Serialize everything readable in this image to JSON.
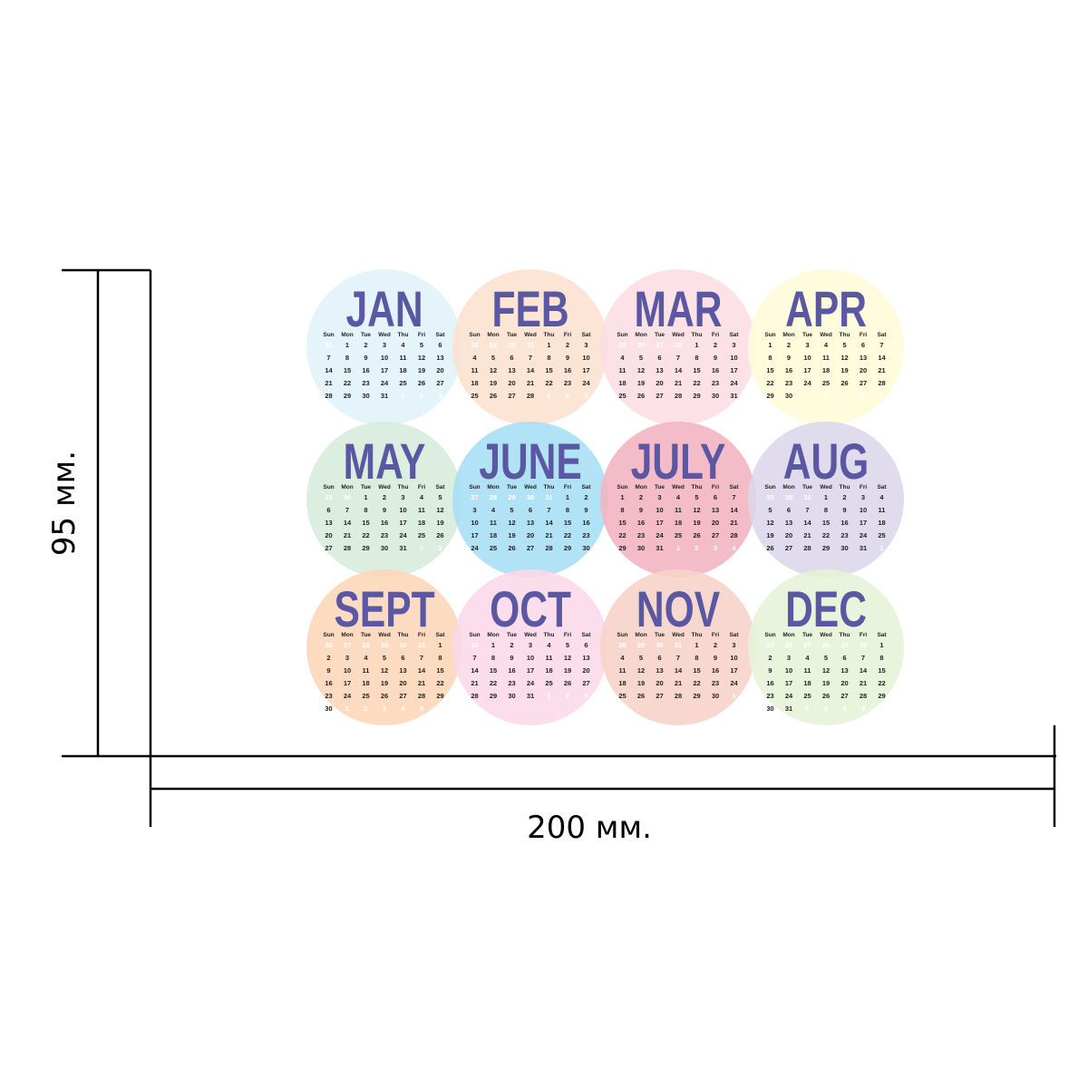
{
  "dimensions": {
    "height_label": "95 мм.",
    "width_label": "200 мм."
  },
  "weekdays": [
    "Sun",
    "Mon",
    "Tue",
    "Wed",
    "Thu",
    "Fri",
    "Sat"
  ],
  "months": [
    {
      "name": "JAN",
      "color": "#e1f2f9",
      "weeks": [
        [
          31,
          1,
          2,
          3,
          4,
          5,
          6
        ],
        [
          7,
          8,
          9,
          10,
          11,
          12,
          13
        ],
        [
          14,
          15,
          16,
          17,
          18,
          19,
          20
        ],
        [
          21,
          22,
          23,
          24,
          25,
          26,
          27
        ],
        [
          28,
          29,
          30,
          31,
          1,
          2,
          3
        ]
      ]
    },
    {
      "name": "FEB",
      "color": "#fde1cf",
      "weeks": [
        [
          28,
          29,
          30,
          31,
          1,
          2,
          3
        ],
        [
          4,
          5,
          6,
          7,
          8,
          9,
          10
        ],
        [
          11,
          12,
          13,
          14,
          15,
          16,
          17
        ],
        [
          18,
          19,
          20,
          21,
          22,
          23,
          24
        ],
        [
          25,
          26,
          27,
          28,
          1,
          2,
          3
        ]
      ]
    },
    {
      "name": "MAR",
      "color": "#fcdde4",
      "weeks": [
        [
          25,
          26,
          27,
          28,
          1,
          2,
          3
        ],
        [
          4,
          5,
          6,
          7,
          8,
          9,
          10
        ],
        [
          11,
          12,
          13,
          14,
          15,
          16,
          17
        ],
        [
          18,
          19,
          20,
          21,
          22,
          23,
          24
        ],
        [
          25,
          26,
          27,
          28,
          29,
          30,
          31
        ]
      ]
    },
    {
      "name": "APR",
      "color": "#fffad8",
      "weeks": [
        [
          1,
          2,
          3,
          4,
          5,
          6,
          7
        ],
        [
          8,
          9,
          10,
          11,
          12,
          13,
          14
        ],
        [
          15,
          16,
          17,
          18,
          19,
          20,
          21
        ],
        [
          22,
          23,
          24,
          25,
          26,
          27,
          28
        ],
        [
          29,
          30,
          1,
          2,
          3,
          4,
          5
        ]
      ]
    },
    {
      "name": "MAY",
      "color": "#d6ecdb",
      "weeks": [
        [
          29,
          30,
          1,
          2,
          3,
          4,
          5
        ],
        [
          6,
          7,
          8,
          9,
          10,
          11,
          12
        ],
        [
          13,
          14,
          15,
          16,
          17,
          18,
          19
        ],
        [
          20,
          21,
          22,
          23,
          24,
          25,
          26
        ],
        [
          27,
          28,
          29,
          30,
          31,
          1,
          2
        ]
      ]
    },
    {
      "name": "JUNE",
      "color": "#a6def5",
      "weeks": [
        [
          27,
          28,
          29,
          30,
          31,
          1,
          2
        ],
        [
          3,
          4,
          5,
          6,
          7,
          8,
          9
        ],
        [
          10,
          11,
          12,
          13,
          14,
          15,
          16
        ],
        [
          17,
          18,
          19,
          20,
          21,
          22,
          23
        ],
        [
          24,
          25,
          26,
          27,
          28,
          29,
          30
        ]
      ]
    },
    {
      "name": "JULY",
      "color": "#f2b3c1",
      "weeks": [
        [
          1,
          2,
          3,
          4,
          5,
          6,
          7
        ],
        [
          8,
          9,
          10,
          11,
          12,
          13,
          14
        ],
        [
          15,
          16,
          17,
          18,
          19,
          20,
          21
        ],
        [
          22,
          23,
          24,
          25,
          26,
          27,
          28
        ],
        [
          29,
          30,
          31,
          1,
          2,
          3,
          4
        ]
      ]
    },
    {
      "name": "AUG",
      "color": "#dcd6eb",
      "weeks": [
        [
          29,
          30,
          31,
          1,
          2,
          3,
          4
        ],
        [
          5,
          6,
          7,
          8,
          9,
          10,
          11
        ],
        [
          12,
          13,
          14,
          15,
          16,
          17,
          18
        ],
        [
          19,
          20,
          21,
          22,
          23,
          24,
          25
        ],
        [
          26,
          27,
          28,
          29,
          30,
          31,
          1
        ]
      ]
    },
    {
      "name": "SEPT",
      "color": "#fdd6b8",
      "weeks": [
        [
          26,
          27,
          28,
          29,
          30,
          31,
          1
        ],
        [
          2,
          3,
          4,
          5,
          6,
          7,
          8
        ],
        [
          9,
          10,
          11,
          12,
          13,
          14,
          15
        ],
        [
          16,
          17,
          18,
          19,
          20,
          21,
          22
        ],
        [
          23,
          24,
          25,
          26,
          27,
          28,
          29
        ],
        [
          30,
          1,
          2,
          3,
          4,
          5,
          6
        ]
      ]
    },
    {
      "name": "OCT",
      "color": "#fbd8e8",
      "weeks": [
        [
          30,
          1,
          2,
          3,
          4,
          5,
          6
        ],
        [
          7,
          8,
          9,
          10,
          11,
          12,
          13
        ],
        [
          14,
          15,
          16,
          17,
          18,
          19,
          20
        ],
        [
          21,
          22,
          23,
          24,
          25,
          26,
          27
        ],
        [
          28,
          29,
          30,
          31,
          1,
          2,
          3
        ]
      ]
    },
    {
      "name": "NOV",
      "color": "#f7d3c7",
      "weeks": [
        [
          28,
          29,
          30,
          31,
          1,
          2,
          3
        ],
        [
          4,
          5,
          6,
          7,
          8,
          9,
          10
        ],
        [
          11,
          12,
          13,
          14,
          15,
          16,
          17
        ],
        [
          18,
          19,
          20,
          21,
          22,
          23,
          24
        ],
        [
          25,
          26,
          27,
          28,
          29,
          30,
          1
        ]
      ]
    },
    {
      "name": "DEC",
      "color": "#e5f2d7",
      "weeks": [
        [
          25,
          26,
          27,
          28,
          29,
          30,
          1
        ],
        [
          2,
          3,
          4,
          5,
          6,
          7,
          8
        ],
        [
          9,
          10,
          11,
          12,
          13,
          14,
          15
        ],
        [
          16,
          17,
          18,
          19,
          20,
          21,
          22
        ],
        [
          23,
          24,
          25,
          26,
          27,
          28,
          29
        ],
        [
          30,
          31,
          1,
          2,
          3,
          4,
          5
        ]
      ]
    }
  ]
}
